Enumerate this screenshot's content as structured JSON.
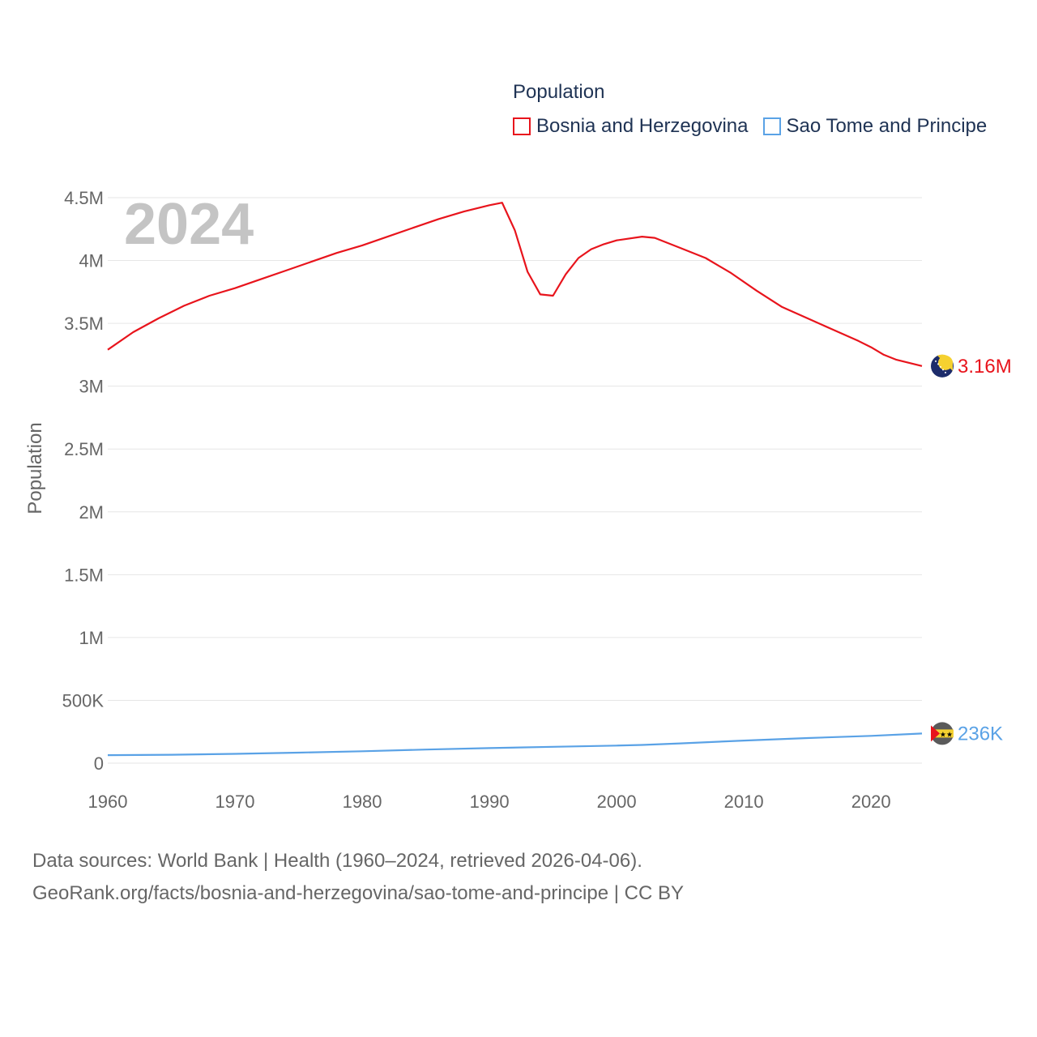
{
  "legend": {
    "title": "Population",
    "items": [
      {
        "label": "Bosnia and Herzegovina",
        "color": "#e8141c"
      },
      {
        "label": "Sao Tome and Principe",
        "color": "#5aa2e6"
      }
    ]
  },
  "footer": {
    "line1": "Data sources: World Bank | Health (1960–2024, retrieved 2026-04-06).",
    "line2": "GeoRank.org/facts/bosnia-and-herzegovina/sao-tome-and-principe | CC BY"
  },
  "chart_data": {
    "type": "line",
    "year_label": "2024",
    "ylabel": "Population",
    "xlabel": "",
    "xlim": [
      1960,
      2024
    ],
    "ylim": [
      0,
      4500000
    ],
    "y_ticks": [
      {
        "value": 0,
        "label": "0"
      },
      {
        "value": 500000,
        "label": "500K"
      },
      {
        "value": 1000000,
        "label": "1M"
      },
      {
        "value": 1500000,
        "label": "1.5M"
      },
      {
        "value": 2000000,
        "label": "2M"
      },
      {
        "value": 2500000,
        "label": "2.5M"
      },
      {
        "value": 3000000,
        "label": "3M"
      },
      {
        "value": 3500000,
        "label": "3.5M"
      },
      {
        "value": 4000000,
        "label": "4M"
      },
      {
        "value": 4500000,
        "label": "4.5M"
      }
    ],
    "x_ticks": [
      {
        "value": 1960,
        "label": "1960"
      },
      {
        "value": 1970,
        "label": "1970"
      },
      {
        "value": 1980,
        "label": "1980"
      },
      {
        "value": 1990,
        "label": "1990"
      },
      {
        "value": 2000,
        "label": "2000"
      },
      {
        "value": 2010,
        "label": "2010"
      },
      {
        "value": 2020,
        "label": "2020"
      }
    ],
    "series": [
      {
        "name": "Bosnia and Herzegovina",
        "color": "#e8141c",
        "end_label": "3.16M",
        "x": [
          1960,
          1962,
          1964,
          1966,
          1968,
          1970,
          1972,
          1974,
          1976,
          1978,
          1980,
          1982,
          1984,
          1986,
          1988,
          1990,
          1991,
          1992,
          1993,
          1994,
          1995,
          1996,
          1997,
          1998,
          1999,
          2000,
          2002,
          2003,
          2005,
          2007,
          2009,
          2011,
          2013,
          2015,
          2017,
          2019,
          2020,
          2021,
          2022,
          2024
        ],
        "values": [
          3290000,
          3430000,
          3540000,
          3640000,
          3720000,
          3780000,
          3850000,
          3920000,
          3990000,
          4060000,
          4120000,
          4190000,
          4260000,
          4330000,
          4390000,
          4440000,
          4460000,
          4240000,
          3910000,
          3730000,
          3720000,
          3890000,
          4020000,
          4090000,
          4130000,
          4160000,
          4190000,
          4180000,
          4100000,
          4020000,
          3900000,
          3760000,
          3630000,
          3540000,
          3450000,
          3360000,
          3310000,
          3250000,
          3210000,
          3160000
        ]
      },
      {
        "name": "Sao Tome and Principe",
        "color": "#5aa2e6",
        "end_label": "236K",
        "x": [
          1960,
          1965,
          1970,
          1975,
          1980,
          1985,
          1990,
          1995,
          2000,
          2002,
          2005,
          2010,
          2015,
          2020,
          2024
        ],
        "values": [
          64000,
          67000,
          74000,
          84000,
          95000,
          108000,
          120000,
          130000,
          140000,
          145000,
          157000,
          180000,
          200000,
          217000,
          236000
        ]
      }
    ]
  }
}
